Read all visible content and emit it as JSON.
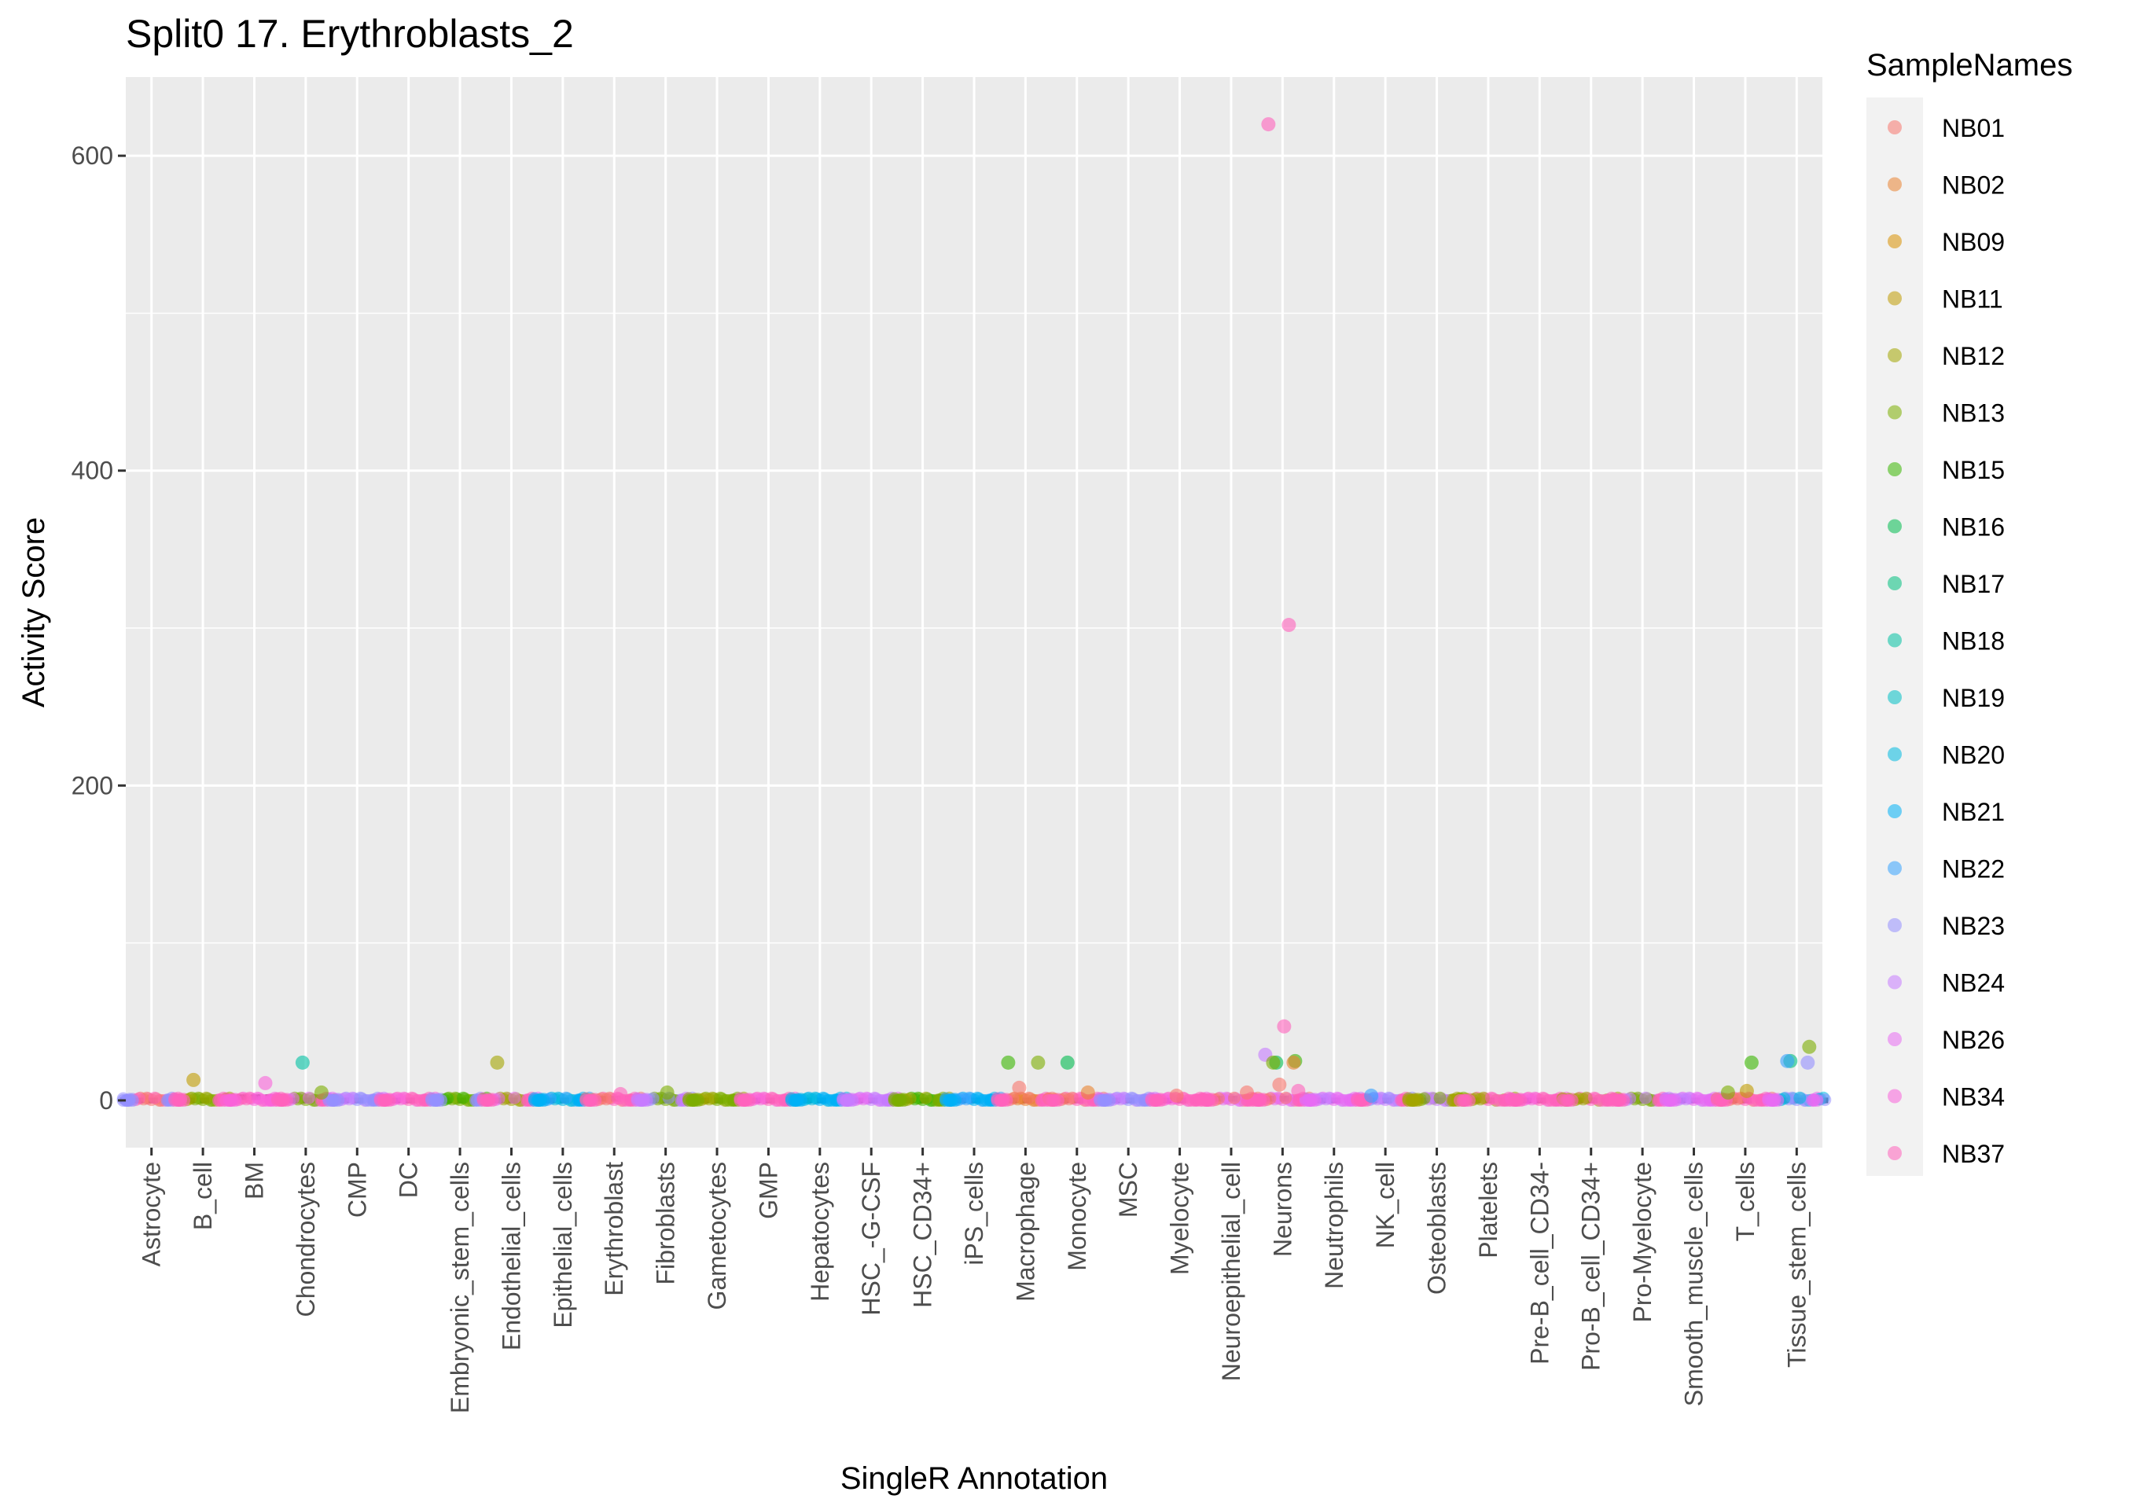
{
  "chart_data": {
    "type": "scatter",
    "title": "Split0 17. Erythroblasts_2",
    "xlabel": "SingleR Annotation",
    "ylabel": "Activity Score",
    "ylim": [
      -30,
      650
    ],
    "yticks": [
      0,
      200,
      400,
      600
    ],
    "grid": true,
    "legend_position": "right",
    "legend": {
      "title": "SampleNames",
      "items": [
        {
          "name": "NB01",
          "color": "#F8766D"
        },
        {
          "name": "NB02",
          "color": "#EA8331"
        },
        {
          "name": "NB09",
          "color": "#D89000"
        },
        {
          "name": "NB11",
          "color": "#C09B00"
        },
        {
          "name": "NB12",
          "color": "#A3A500"
        },
        {
          "name": "NB13",
          "color": "#7CAE00"
        },
        {
          "name": "NB15",
          "color": "#39B600"
        },
        {
          "name": "NB16",
          "color": "#00BB4E"
        },
        {
          "name": "NB17",
          "color": "#00BF7D"
        },
        {
          "name": "NB18",
          "color": "#00C1A3"
        },
        {
          "name": "NB19",
          "color": "#00BFC4"
        },
        {
          "name": "NB20",
          "color": "#00BAE0"
        },
        {
          "name": "NB21",
          "color": "#00B0F6"
        },
        {
          "name": "NB22",
          "color": "#35A2FF"
        },
        {
          "name": "NB23",
          "color": "#9590FF"
        },
        {
          "name": "NB24",
          "color": "#C77CFF"
        },
        {
          "name": "NB26",
          "color": "#E76BF3"
        },
        {
          "name": "NB34",
          "color": "#FA62DB"
        },
        {
          "name": "NB37",
          "color": "#FF62BC"
        }
      ]
    },
    "categories": [
      "Astrocyte",
      "B_cell",
      "BM",
      "Chondrocytes",
      "CMP",
      "DC",
      "Embryonic_stem_cells",
      "Endothelial_cells",
      "Epithelial_cells",
      "Erythroblast",
      "Fibroblasts",
      "Gametocytes",
      "GMP",
      "Hepatocytes",
      "HSC_-G-CSF",
      "HSC_CD34+",
      "iPS_cells",
      "Macrophage",
      "Monocyte",
      "MSC",
      "Myelocyte",
      "Neuroepithelial_cell",
      "Neurons",
      "Neutrophils",
      "NK_cell",
      "Osteoblasts",
      "Platelets",
      "Pre-B_cell_CD34-",
      "Pro-B_cell_CD34+",
      "Pro-Myelocyte",
      "Smooth_muscle_cells",
      "T_cells",
      "Tissue_stem_cells"
    ],
    "medians": [
      0,
      0,
      2,
      0,
      0,
      0,
      0,
      0,
      0,
      1,
      0,
      0,
      0,
      0,
      0,
      0,
      0,
      0,
      0,
      0,
      0,
      1,
      1,
      0,
      0,
      0,
      0,
      0,
      0,
      0,
      0,
      0,
      0
    ],
    "cluster_colors": [
      [
        "#9590FF",
        "#FF62BC",
        "#F8766D"
      ],
      [
        "#FF62BC",
        "#A3A500",
        "#7CAE00"
      ],
      [
        "#FA62DB",
        "#FF62BC"
      ],
      [
        "#FF62BC",
        "#E76BF3",
        "#7CAE00"
      ],
      [
        "#9590FF",
        "#C77CFF"
      ],
      [
        "#FF62BC",
        "#FA62DB"
      ],
      [
        "#9590FF",
        "#39B600",
        "#7CAE00"
      ],
      [
        "#FF62BC",
        "#E76BF3",
        "#A3A500"
      ],
      [
        "#00B0F6",
        "#35A2FF",
        "#00BAE0"
      ],
      [
        "#FF62BC",
        "#F8766D"
      ],
      [
        "#C77CFF",
        "#9590FF",
        "#7CAE00"
      ],
      [
        "#7CAE00",
        "#A3A500"
      ],
      [
        "#FF62BC",
        "#FA62DB"
      ],
      [
        "#00B0F6",
        "#00BAE0"
      ],
      [
        "#C77CFF",
        "#E76BF3"
      ],
      [
        "#7CAE00",
        "#A3A500",
        "#39B600"
      ],
      [
        "#00B0F6",
        "#35A2FF"
      ],
      [
        "#FF62BC",
        "#F8766D",
        "#EA8331"
      ],
      [
        "#FF62BC",
        "#F8766D"
      ],
      [
        "#9590FF",
        "#C77CFF"
      ],
      [
        "#FF62BC",
        "#FA62DB"
      ],
      [
        "#FF62BC",
        "#F8766D",
        "#E76BF3"
      ],
      [
        "#FF62BC",
        "#F8766D",
        "#E76BF3"
      ],
      [
        "#E76BF3",
        "#C77CFF"
      ],
      [
        "#FF62BC",
        "#9590FF",
        "#C77CFF"
      ],
      [
        "#A3A500",
        "#7CAE00",
        "#C77CFF"
      ],
      [
        "#FF62BC",
        "#A3A500"
      ],
      [
        "#FF62BC",
        "#FA62DB"
      ],
      [
        "#FF62BC",
        "#A3A500"
      ],
      [
        "#FF62BC",
        "#C77CFF",
        "#7CAE00"
      ],
      [
        "#E76BF3",
        "#C77CFF"
      ],
      [
        "#FF62BC",
        "#F8766D"
      ],
      [
        "#E76BF3",
        "#00BAE0",
        "#9590FF"
      ]
    ],
    "outliers": [
      {
        "category": "B_cell",
        "sample": "NB11",
        "value": 13
      },
      {
        "category": "BM",
        "sample": "NB34",
        "value": 11
      },
      {
        "category": "Chondrocytes",
        "sample": "NB18",
        "value": 24
      },
      {
        "category": "Chondrocytes",
        "sample": "NB13",
        "value": 5
      },
      {
        "category": "Endothelial_cells",
        "sample": "NB12",
        "value": 24
      },
      {
        "category": "Erythroblast",
        "sample": "NB37",
        "value": 4
      },
      {
        "category": "Fibroblasts",
        "sample": "NB13",
        "value": 5
      },
      {
        "category": "Macrophage",
        "sample": "NB15",
        "value": 24
      },
      {
        "category": "Macrophage",
        "sample": "NB13",
        "value": 24
      },
      {
        "category": "Macrophage",
        "sample": "NB01",
        "value": 8
      },
      {
        "category": "Monocyte",
        "sample": "NB16",
        "value": 24
      },
      {
        "category": "Monocyte",
        "sample": "NB02",
        "value": 5
      },
      {
        "category": "Myelocyte",
        "sample": "NB01",
        "value": 3
      },
      {
        "category": "Neuroepithelial_cell",
        "sample": "NB01",
        "value": 5
      },
      {
        "category": "Neurons",
        "sample": "NB37",
        "value": 620
      },
      {
        "category": "Neurons",
        "sample": "NB37",
        "value": 302
      },
      {
        "category": "Neurons",
        "sample": "NB37",
        "value": 47
      },
      {
        "category": "Neurons",
        "sample": "NB24",
        "value": 29
      },
      {
        "category": "Neurons",
        "sample": "NB15",
        "value": 25
      },
      {
        "category": "Neurons",
        "sample": "NB16",
        "value": 24
      },
      {
        "category": "Neurons",
        "sample": "NB13",
        "value": 24
      },
      {
        "category": "Neurons",
        "sample": "NB02",
        "value": 24
      },
      {
        "category": "Neurons",
        "sample": "NB01",
        "value": 10
      },
      {
        "category": "Neurons",
        "sample": "NB37",
        "value": 6
      },
      {
        "category": "NK_cell",
        "sample": "NB22",
        "value": 3
      },
      {
        "category": "T_cells",
        "sample": "NB15",
        "value": 24
      },
      {
        "category": "T_cells",
        "sample": "NB11",
        "value": 6
      },
      {
        "category": "T_cells",
        "sample": "NB13",
        "value": 5
      },
      {
        "category": "Tissue_stem_cells",
        "sample": "NB13",
        "value": 34
      },
      {
        "category": "Tissue_stem_cells",
        "sample": "NB17",
        "value": 25
      },
      {
        "category": "Tissue_stem_cells",
        "sample": "NB22",
        "value": 25
      },
      {
        "category": "Tissue_stem_cells",
        "sample": "NB23",
        "value": 24
      }
    ]
  }
}
